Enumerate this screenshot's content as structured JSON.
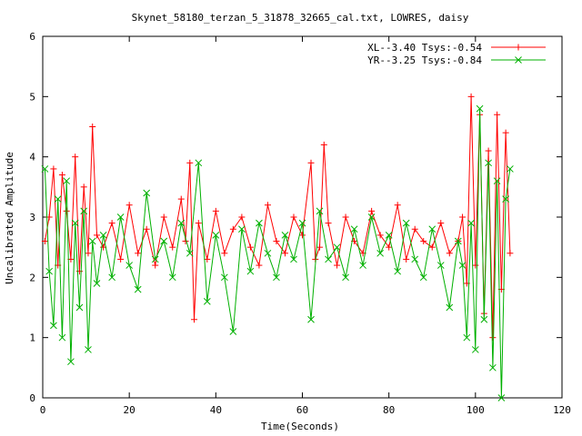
{
  "chart_data": {
    "type": "line",
    "title": "Skynet_58180_terzan_5_31878_32665_cal.txt, LOWRES, daisy",
    "xlabel": "Time(Seconds)",
    "ylabel": "Uncalibrated Amplitude",
    "xlim": [
      0,
      120
    ],
    "ylim": [
      0,
      6
    ],
    "xticks": [
      0,
      20,
      40,
      60,
      80,
      100,
      120
    ],
    "yticks": [
      0,
      1,
      2,
      3,
      4,
      5,
      6
    ],
    "grid": false,
    "legend_position": "top-right",
    "series": [
      {
        "name": "XL--3.40 Tsys:-0.54",
        "color": "#ff0000",
        "marker": "plus",
        "x": [
          0.5,
          1.5,
          2.5,
          3.5,
          4.5,
          5.5,
          6.5,
          7.5,
          8.5,
          9.5,
          10.5,
          11.5,
          12.5,
          14,
          16,
          18,
          20,
          22,
          24,
          26,
          28,
          30,
          32,
          33,
          34,
          35,
          36,
          38,
          40,
          42,
          44,
          46,
          48,
          50,
          52,
          54,
          56,
          58,
          60,
          62,
          63,
          64,
          65,
          66,
          68,
          70,
          72,
          74,
          76,
          78,
          80,
          82,
          84,
          86,
          88,
          90,
          92,
          94,
          96,
          97,
          98,
          99,
          100,
          101,
          102,
          103,
          104,
          105,
          106,
          107,
          108
        ],
        "y": [
          2.6,
          3.0,
          3.8,
          2.2,
          3.7,
          3.1,
          2.3,
          4.0,
          2.1,
          3.5,
          2.4,
          4.5,
          2.7,
          2.5,
          2.9,
          2.3,
          3.2,
          2.4,
          2.8,
          2.2,
          3.0,
          2.5,
          3.3,
          2.6,
          3.9,
          1.3,
          2.9,
          2.3,
          3.1,
          2.4,
          2.8,
          3.0,
          2.5,
          2.2,
          3.2,
          2.6,
          2.4,
          3.0,
          2.7,
          3.9,
          2.3,
          2.5,
          4.2,
          2.9,
          2.2,
          3.0,
          2.6,
          2.4,
          3.1,
          2.7,
          2.5,
          3.2,
          2.3,
          2.8,
          2.6,
          2.5,
          2.9,
          2.4,
          2.6,
          3.0,
          1.9,
          5.0,
          2.2,
          4.7,
          1.4,
          4.1,
          1.0,
          4.7,
          1.8,
          4.4,
          2.4
        ]
      },
      {
        "name": "YR--3.25 Tsys:-0.84",
        "color": "#00b000",
        "marker": "cross",
        "x": [
          0.5,
          1.5,
          2.5,
          3.5,
          4.5,
          5.5,
          6.5,
          7.5,
          8.5,
          9.5,
          10.5,
          11.5,
          12.5,
          14,
          16,
          18,
          20,
          22,
          24,
          26,
          28,
          30,
          32,
          34,
          36,
          38,
          40,
          42,
          44,
          46,
          48,
          50,
          52,
          54,
          56,
          58,
          60,
          62,
          64,
          66,
          68,
          70,
          72,
          74,
          76,
          78,
          80,
          82,
          84,
          86,
          88,
          90,
          92,
          94,
          96,
          97,
          98,
          99,
          100,
          101,
          102,
          103,
          104,
          105,
          106,
          107,
          108
        ],
        "y": [
          3.8,
          2.1,
          1.2,
          3.3,
          1.0,
          3.6,
          0.6,
          2.9,
          1.5,
          3.1,
          0.8,
          2.6,
          1.9,
          2.7,
          2.0,
          3.0,
          2.2,
          1.8,
          3.4,
          2.3,
          2.6,
          2.0,
          2.9,
          2.4,
          3.9,
          1.6,
          2.7,
          2.0,
          1.1,
          2.8,
          2.1,
          2.9,
          2.4,
          2.0,
          2.7,
          2.3,
          2.9,
          1.3,
          3.1,
          2.3,
          2.5,
          2.0,
          2.8,
          2.2,
          3.0,
          2.4,
          2.7,
          2.1,
          2.9,
          2.3,
          2.0,
          2.8,
          2.2,
          1.5,
          2.6,
          2.2,
          1.0,
          2.9,
          0.8,
          4.8,
          1.3,
          3.9,
          0.5,
          3.6,
          0.0,
          3.3,
          3.8
        ]
      }
    ]
  }
}
